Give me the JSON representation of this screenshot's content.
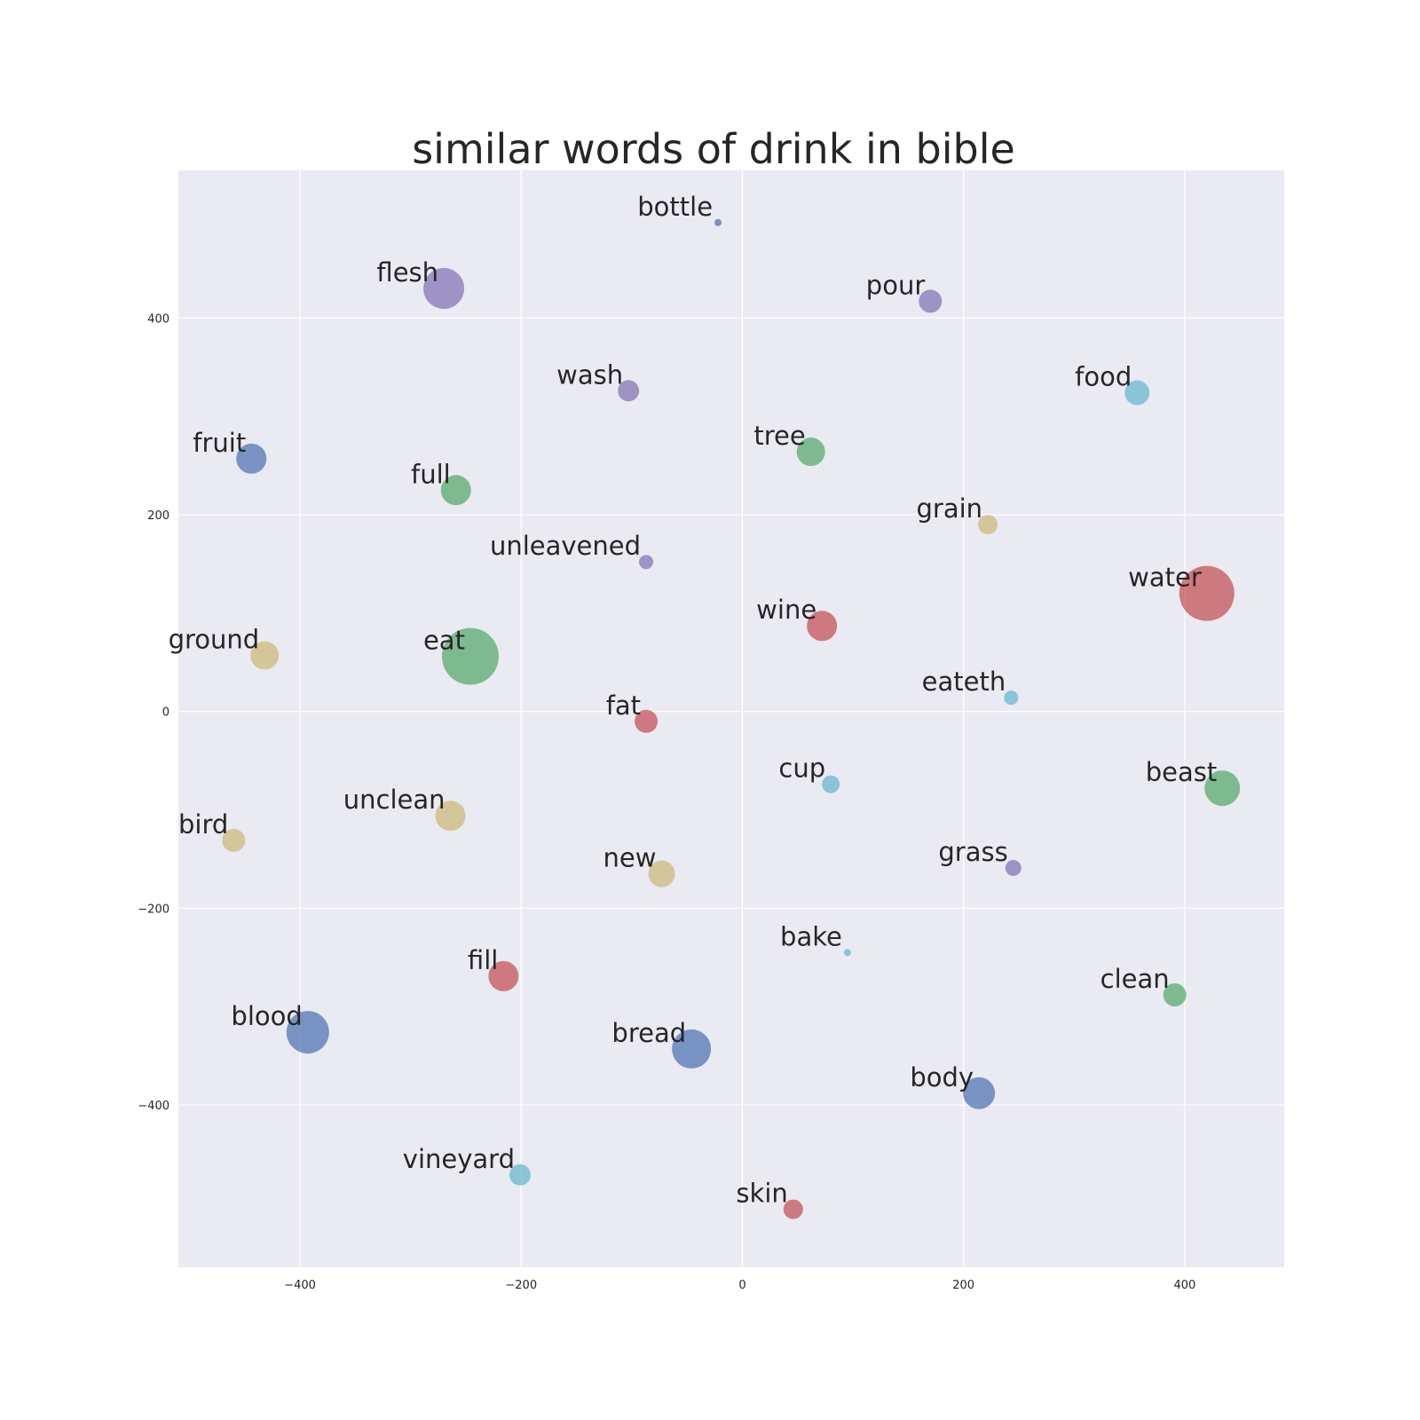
{
  "chart_data": {
    "type": "scatter",
    "title": "similar words of drink in bible",
    "xlabel": "",
    "ylabel": "",
    "xlim": [
      -510,
      490
    ],
    "ylim": [
      -565,
      550
    ],
    "xticks": [
      -400,
      -200,
      0,
      200,
      400
    ],
    "yticks": [
      400,
      200,
      0,
      -200,
      -400
    ],
    "grid": true,
    "legend": "none",
    "colors": {
      "blue": "#4c72b0",
      "green": "#55a868",
      "red": "#c44e52",
      "purple": "#8172b2",
      "yellow": "#ccb974",
      "cyan": "#64b5cd",
      "background": "#eaeaf2",
      "grid": "#ffffff",
      "text": "#262626"
    },
    "points": [
      {
        "label": "bottle",
        "x": -22,
        "y": 497,
        "size": 4,
        "color": "blue"
      },
      {
        "label": "flesh",
        "x": -270,
        "y": 430,
        "size": 23,
        "color": "purple"
      },
      {
        "label": "pour",
        "x": 170,
        "y": 417,
        "size": 13,
        "color": "purple"
      },
      {
        "label": "wash",
        "x": -103,
        "y": 326,
        "size": 12,
        "color": "purple"
      },
      {
        "label": "food",
        "x": 357,
        "y": 324,
        "size": 14,
        "color": "cyan"
      },
      {
        "label": "fruit",
        "x": -444,
        "y": 257,
        "size": 17,
        "color": "blue"
      },
      {
        "label": "tree",
        "x": 62,
        "y": 264,
        "size": 16,
        "color": "green"
      },
      {
        "label": "full",
        "x": -259,
        "y": 225,
        "size": 17,
        "color": "green"
      },
      {
        "label": "grain",
        "x": 222,
        "y": 190,
        "size": 11,
        "color": "yellow"
      },
      {
        "label": "unleavened",
        "x": -87,
        "y": 152,
        "size": 8,
        "color": "purple"
      },
      {
        "label": "water",
        "x": 420,
        "y": 120,
        "size": 31,
        "color": "red"
      },
      {
        "label": "wine",
        "x": 72,
        "y": 87,
        "size": 17,
        "color": "red"
      },
      {
        "label": "ground",
        "x": -432,
        "y": 57,
        "size": 16,
        "color": "yellow"
      },
      {
        "label": "eat",
        "x": -246,
        "y": 56,
        "size": 32,
        "color": "green"
      },
      {
        "label": "eateth",
        "x": 243,
        "y": 14,
        "size": 8,
        "color": "cyan"
      },
      {
        "label": "fat",
        "x": -87,
        "y": -10,
        "size": 13,
        "color": "red"
      },
      {
        "label": "cup",
        "x": 80,
        "y": -74,
        "size": 10,
        "color": "cyan"
      },
      {
        "label": "beast",
        "x": 434,
        "y": -78,
        "size": 20,
        "color": "green"
      },
      {
        "label": "unclean",
        "x": -264,
        "y": -106,
        "size": 17,
        "color": "yellow"
      },
      {
        "label": "bird",
        "x": -460,
        "y": -131,
        "size": 13,
        "color": "yellow"
      },
      {
        "label": "new",
        "x": -73,
        "y": -165,
        "size": 15,
        "color": "yellow"
      },
      {
        "label": "grass",
        "x": 245,
        "y": -159,
        "size": 9,
        "color": "purple"
      },
      {
        "label": "bake",
        "x": 95,
        "y": -245,
        "size": 4,
        "color": "cyan"
      },
      {
        "label": "fill",
        "x": -216,
        "y": -269,
        "size": 17,
        "color": "red"
      },
      {
        "label": "clean",
        "x": 391,
        "y": -288,
        "size": 13,
        "color": "green"
      },
      {
        "label": "blood",
        "x": -393,
        "y": -326,
        "size": 24,
        "color": "blue"
      },
      {
        "label": "bread",
        "x": -46,
        "y": -343,
        "size": 22,
        "color": "blue"
      },
      {
        "label": "body",
        "x": 214,
        "y": -388,
        "size": 18,
        "color": "blue"
      },
      {
        "label": "vineyard",
        "x": -201,
        "y": -471,
        "size": 12,
        "color": "cyan"
      },
      {
        "label": "skin",
        "x": 46,
        "y": -506,
        "size": 11,
        "color": "red"
      }
    ]
  }
}
